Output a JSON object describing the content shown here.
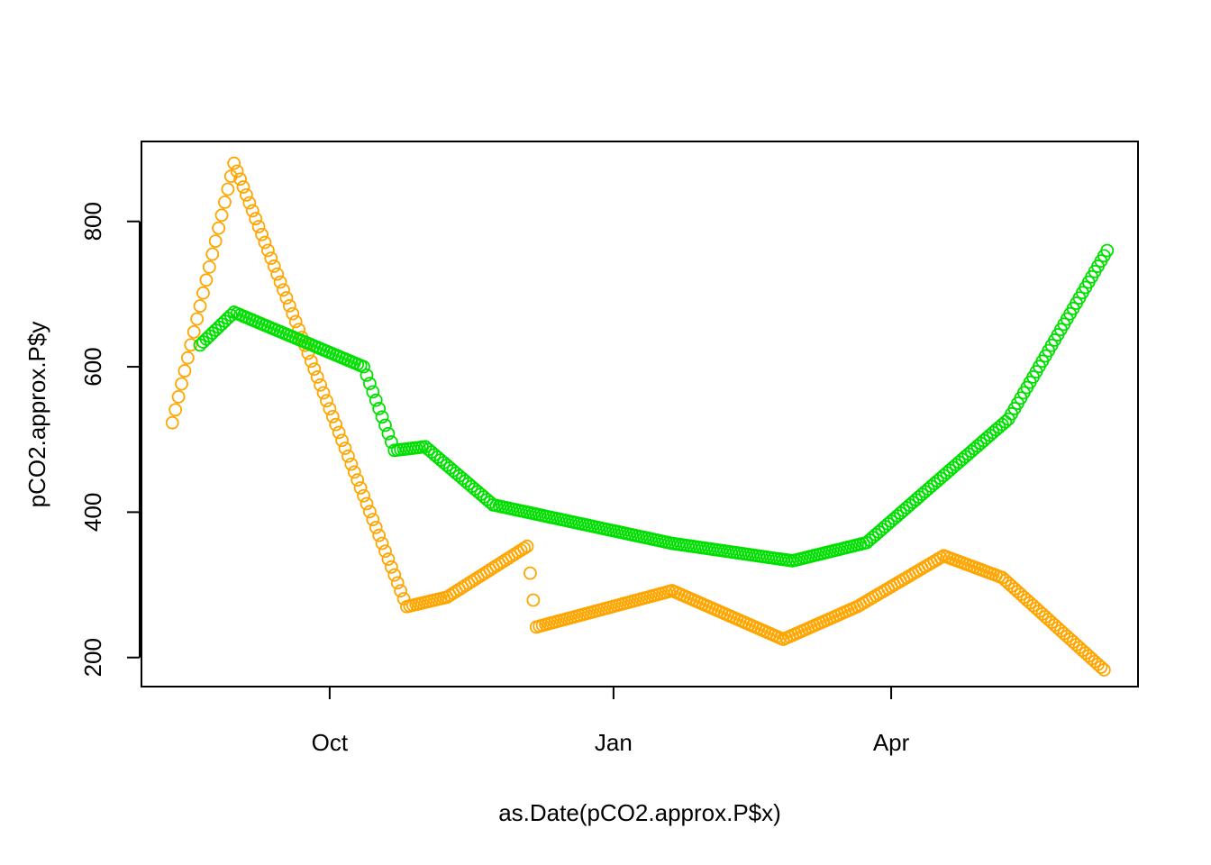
{
  "chart_data": {
    "type": "scatter",
    "title": "",
    "xlabel": "as.Date(pCO2.approx.P$x)",
    "ylabel": "pCO2.approx.P$y",
    "x_ticks": [
      {
        "label": "Oct",
        "date": "2017-10-01"
      },
      {
        "label": "Jan",
        "date": "2018-01-01"
      },
      {
        "label": "Apr",
        "date": "2018-04-01"
      }
    ],
    "y_ticks": [
      200,
      400,
      600,
      800
    ],
    "xlim": [
      "2017-08-01",
      "2018-06-20"
    ],
    "ylim": [
      160,
      910
    ],
    "grid": false,
    "legend": "none",
    "marker": "open-circle",
    "series": [
      {
        "color": "#FFA500",
        "knots": [
          {
            "x": "2017-08-11",
            "y": 523
          },
          {
            "x": "2017-08-31",
            "y": 880
          },
          {
            "x": "2017-10-26",
            "y": 270
          },
          {
            "x": "2017-11-08",
            "y": 283
          },
          {
            "x": "2017-12-04",
            "y": 353
          },
          {
            "x": "2017-12-07",
            "y": 242
          },
          {
            "x": "2018-01-20",
            "y": 292
          },
          {
            "x": "2018-02-25",
            "y": 225
          },
          {
            "x": "2018-03-21",
            "y": 270
          },
          {
            "x": "2018-04-18",
            "y": 340
          },
          {
            "x": "2018-05-07",
            "y": 310
          },
          {
            "x": "2018-06-09",
            "y": 183
          }
        ]
      },
      {
        "color": "#00E000",
        "knots": [
          {
            "x": "2017-08-20",
            "y": 630
          },
          {
            "x": "2017-08-31",
            "y": 675
          },
          {
            "x": "2017-10-12",
            "y": 600
          },
          {
            "x": "2017-10-22",
            "y": 485
          },
          {
            "x": "2017-11-01",
            "y": 490
          },
          {
            "x": "2017-11-23",
            "y": 410
          },
          {
            "x": "2018-01-20",
            "y": 357
          },
          {
            "x": "2018-02-28",
            "y": 333
          },
          {
            "x": "2018-03-24",
            "y": 358
          },
          {
            "x": "2018-05-09",
            "y": 528
          },
          {
            "x": "2018-06-10",
            "y": 760
          }
        ]
      }
    ]
  }
}
